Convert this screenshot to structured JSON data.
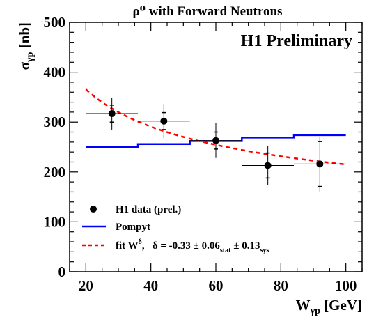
{
  "chart_data": {
    "type": "scatter",
    "title": "ρ⁰ with Forward Neutrons",
    "annotation": "H1 Preliminary",
    "xlabel": "W_γp [GeV]",
    "ylabel": "σ_γp [nb]",
    "xlim": [
      15,
      105
    ],
    "ylim": [
      0,
      500
    ],
    "x_ticks": [
      20,
      40,
      60,
      80,
      100
    ],
    "y_ticks": [
      0,
      100,
      200,
      300,
      400,
      500
    ],
    "grid": false,
    "legend_position": "bottom-left",
    "legend": {
      "data": "H1 data (prel.)",
      "model": "Pompyt",
      "fit": "fit W^δ,   δ = -0.33 ± 0.06_stat ± 0.13_sys"
    },
    "series": [
      {
        "name": "H1 data (prel.)",
        "kind": "points",
        "color": "#000000",
        "points": [
          {
            "x": 28,
            "y": 317,
            "xerr_low": 8,
            "xerr_high": 8,
            "stat": 17,
            "tot": 32
          },
          {
            "x": 44,
            "y": 302,
            "xerr_low": 8,
            "xerr_high": 8,
            "stat": 17,
            "tot": 34
          },
          {
            "x": 60,
            "y": 263,
            "xerr_low": 8,
            "xerr_high": 8,
            "stat": 17,
            "tot": 35
          },
          {
            "x": 76,
            "y": 213,
            "xerr_low": 8,
            "xerr_high": 8,
            "stat": 25,
            "tot": 39
          },
          {
            "x": 92,
            "y": 216,
            "xerr_low": 8,
            "xerr_high": 8,
            "stat": 45,
            "tot": 55
          }
        ]
      },
      {
        "name": "Pompyt",
        "kind": "step",
        "color": "#0000ff",
        "steps": [
          {
            "x0": 20,
            "x1": 36,
            "y": 250
          },
          {
            "x0": 36,
            "x1": 52,
            "y": 256
          },
          {
            "x0": 52,
            "x1": 68,
            "y": 262
          },
          {
            "x0": 68,
            "x1": 84,
            "y": 269
          },
          {
            "x0": 84,
            "x1": 100,
            "y": 274
          }
        ]
      },
      {
        "name": "fit W^δ",
        "kind": "curve",
        "color": "#ff0000",
        "dashed": true,
        "x_range": [
          20,
          100
        ],
        "y_at_x100": 215,
        "delta": -0.33
      }
    ]
  }
}
